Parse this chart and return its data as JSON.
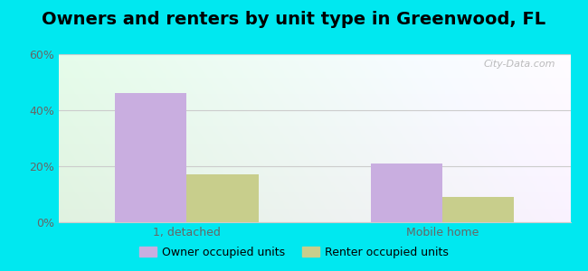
{
  "title": "Owners and renters by unit type in Greenwood, FL",
  "categories": [
    "1, detached",
    "Mobile home"
  ],
  "owner_values": [
    46,
    21
  ],
  "renter_values": [
    17,
    9
  ],
  "owner_color": "#c9aee0",
  "renter_color": "#c8ce8c",
  "ylim": [
    0,
    60
  ],
  "yticks": [
    0,
    20,
    40,
    60
  ],
  "ytick_labels": [
    "0%",
    "20%",
    "40%",
    "60%"
  ],
  "bar_width": 0.28,
  "outer_bg": "#00e8f0",
  "legend_owner": "Owner occupied units",
  "legend_renter": "Renter occupied units",
  "watermark": "City-Data.com",
  "title_fontsize": 14,
  "axis_fontsize": 9,
  "legend_fontsize": 9
}
